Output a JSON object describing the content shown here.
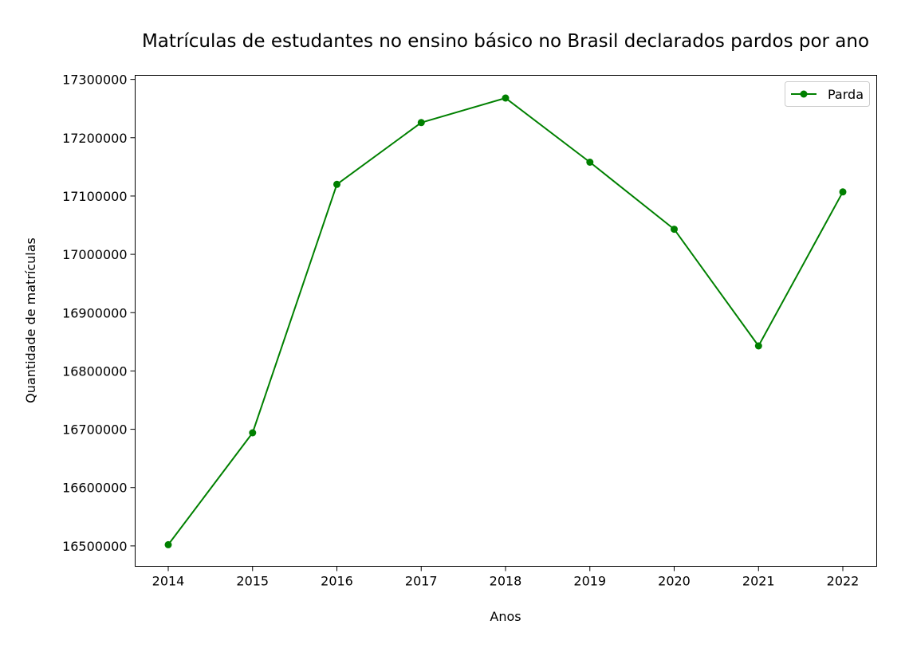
{
  "chart_data": {
    "type": "line",
    "title": "Matrículas de estudantes no ensino básico no Brasil declarados pardos por ano",
    "xlabel": "Anos",
    "ylabel": "Quantidade de matrículas",
    "x": [
      "2014",
      "2015",
      "2016",
      "2017",
      "2018",
      "2019",
      "2020",
      "2021",
      "2022"
    ],
    "series": [
      {
        "name": "Parda",
        "color": "#008000",
        "marker": "circle",
        "values": [
          16502000,
          16694000,
          17120000,
          17226000,
          17268000,
          17158000,
          17043000,
          16843000,
          17107000
        ]
      }
    ],
    "yticks": [
      "16500000",
      "16600000",
      "16700000",
      "16800000",
      "16900000",
      "17000000",
      "17100000",
      "17200000",
      "17300000"
    ],
    "ylim": [
      16465000,
      17307000
    ],
    "grid": false,
    "legend_position": "top-right"
  }
}
